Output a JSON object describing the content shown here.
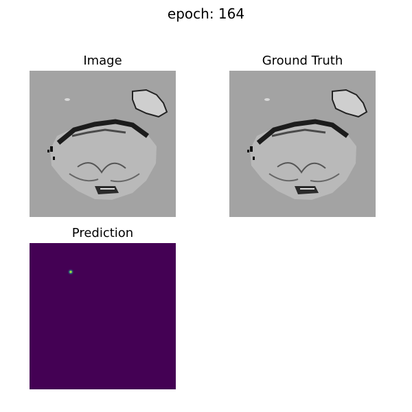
{
  "suptitle": "epoch: 164",
  "panels": {
    "image": {
      "title": "Image"
    },
    "ground_truth": {
      "title": "Ground Truth"
    },
    "prediction": {
      "title": "Prediction"
    }
  },
  "colors": {
    "mri_background": "#a3a3a3",
    "prediction_background": "#440154",
    "prediction_hotspot": "#35b779"
  }
}
